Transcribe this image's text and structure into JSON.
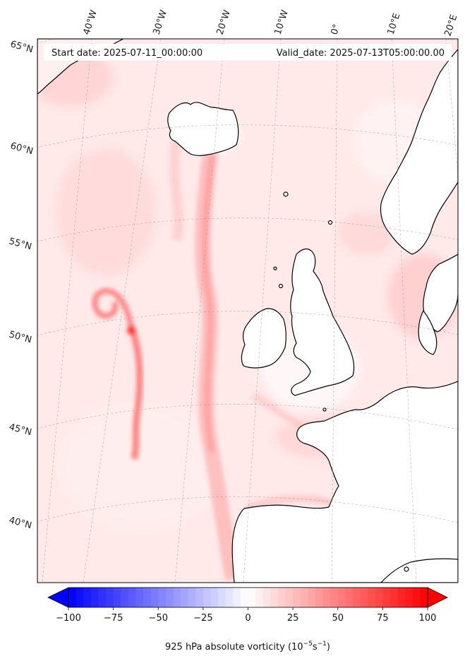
{
  "stamps": {
    "start": "Start date: 2025-07-11_00:00:00",
    "valid": "Valid_date: 2025-07-13T05:00:00.00"
  },
  "lon_labels": [
    "40°W",
    "30°W",
    "20°W",
    "10°W",
    "0°",
    "10°E",
    "20°E"
  ],
  "lat_labels": [
    "65°N",
    "60°N",
    "55°N",
    "50°N",
    "45°N",
    "40°N"
  ],
  "colorbar": {
    "label_prefix": "925 hPa absolute vorticity (10",
    "label_exp1": "−5",
    "label_mid": "s",
    "label_exp2": "−1",
    "label_suffix": ")",
    "ticks": [
      "−100",
      "−75",
      "−50",
      "−25",
      "0",
      "25",
      "50",
      "75",
      "100"
    ],
    "vmin": -100,
    "vmax": 100,
    "levels": 48
  },
  "chart_data": {
    "type": "heatmap",
    "field": "925 hPa absolute vorticity",
    "units": "10^-5 s^-1",
    "colormap": "bwr",
    "vmin": -100,
    "vmax": 100,
    "colorbar_ticks": [
      -100,
      -75,
      -50,
      -25,
      0,
      25,
      50,
      75,
      100
    ],
    "extend": "both",
    "projection": "conic",
    "longitude_gridlines": [
      -40,
      -30,
      -20,
      -10,
      0,
      10,
      20
    ],
    "latitude_gridlines": [
      65,
      60,
      55,
      50,
      45,
      40
    ],
    "features": [
      {
        "type": "spiral-maximum",
        "lon": -38,
        "lat": 50,
        "value": 80
      },
      {
        "type": "frontal-band",
        "lon": -20,
        "lat": 50,
        "value": 45
      }
    ]
  }
}
